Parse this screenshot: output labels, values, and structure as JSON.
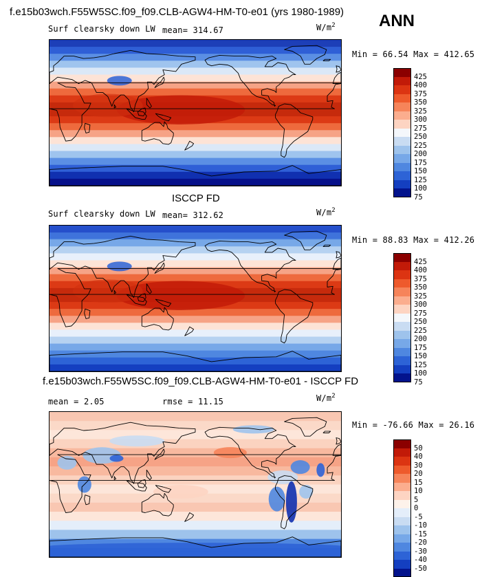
{
  "header": {
    "case_title": "f.e15b03wch.F55W5SC.f09_f09.CLB-AGW4-HM-T0-e01 (yrs 1980-1989)",
    "season": "ANN"
  },
  "panels": [
    {
      "title": "",
      "variable": "Surf clearsky down LW",
      "stat_text": "mean= 314.67",
      "units_base": "W/m",
      "units_exp": "2",
      "minmax_text": "Min =  66.54 Max = 412.65",
      "colorbar": {
        "levels": [
          "425",
          "400",
          "375",
          "350",
          "325",
          "300",
          "275",
          "250",
          "225",
          "200",
          "175",
          "150",
          "125",
          "100",
          "75"
        ],
        "colors": [
          "#8b0000",
          "#c21a08",
          "#dc3412",
          "#ee5a2c",
          "#f6845a",
          "#fbad8e",
          "#fdd4c2",
          "#f4f7fb",
          "#c9dcf2",
          "#9ec3ec",
          "#77a8e8",
          "#4f87e0",
          "#2d63d6",
          "#143fc0",
          "#03138c"
        ]
      }
    },
    {
      "title": "ISCCP FD",
      "variable": "Surf clearsky down LW",
      "stat_text": "mean= 312.62",
      "units_base": "W/m",
      "units_exp": "2",
      "minmax_text": "Min =  88.83 Max = 412.26",
      "colorbar": {
        "levels": [
          "425",
          "400",
          "375",
          "350",
          "325",
          "300",
          "275",
          "250",
          "225",
          "200",
          "175",
          "150",
          "125",
          "100",
          "75"
        ],
        "colors": [
          "#8b0000",
          "#c21a08",
          "#dc3412",
          "#ee5a2c",
          "#f6845a",
          "#fbad8e",
          "#fdd4c2",
          "#f4f7fb",
          "#c9dcf2",
          "#9ec3ec",
          "#77a8e8",
          "#4f87e0",
          "#2d63d6",
          "#143fc0",
          "#03138c"
        ]
      }
    },
    {
      "title": "f.e15b03wch.F55W5SC.f09_f09.CLB-AGW4-HM-T0-e01 - ISCCP FD",
      "variable": "",
      "stat_text": "mean =   2.05",
      "rmse_text": "rmse =  11.15",
      "units_base": "W/m",
      "units_exp": "2",
      "minmax_text": "Min = -76.66 Max =  26.16",
      "colorbar": {
        "levels": [
          "50",
          "40",
          "30",
          "20",
          "15",
          "10",
          "5",
          "0",
          "-5",
          "-10",
          "-15",
          "-20",
          "-30",
          "-40",
          "-50"
        ],
        "colors": [
          "#8b0000",
          "#c21a08",
          "#dc3412",
          "#ee5a2c",
          "#f6845a",
          "#fbad8e",
          "#fdd4c2",
          "#fdf2ea",
          "#e4eefa",
          "#c9dcf2",
          "#9ec3ec",
          "#77a8e8",
          "#4f87e0",
          "#2d63d6",
          "#143fc0",
          "#03138c"
        ]
      }
    }
  ]
}
